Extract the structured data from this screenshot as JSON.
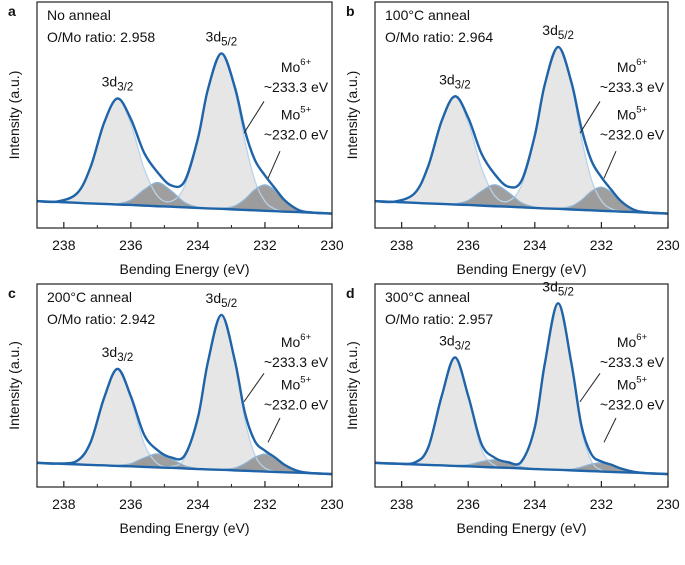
{
  "chart_data": [
    {
      "type": "area",
      "panel": "a",
      "condition": "No anneal",
      "ratio": "O/Mo ratio: 2.958",
      "xlabel": "Bending Energy (eV)",
      "ylabel": "Intensity (a.u.)",
      "xlim": [
        238.8,
        230
      ],
      "xticks": [
        238,
        236,
        234,
        232,
        230
      ],
      "xminorticks": [
        237,
        235,
        233,
        231
      ],
      "ylim": [
        0,
        1.05
      ],
      "peak_labels": [
        {
          "text": "3d",
          "sub": "3/2"
        },
        {
          "text": "3d",
          "sub": "5/2"
        }
      ],
      "species": [
        {
          "text": "Mo",
          "sup": "6+",
          "energy": "~233.3 eV"
        },
        {
          "text": "Mo",
          "sup": "5+",
          "energy": "~232.0 eV"
        }
      ],
      "x": [
        238.8,
        238.2,
        237.6,
        237.2,
        236.8,
        236.4,
        236.0,
        235.6,
        235.2,
        234.8,
        234.4,
        234.0,
        233.7,
        233.3,
        232.9,
        232.6,
        232.3,
        232.0,
        231.7,
        231.4,
        231.0,
        230.6,
        230.0
      ],
      "series": [
        {
          "color": "#b9d3ea",
          "fill": "#e2e2e2",
          "values": [
            0.125,
            0.123,
            0.162,
            0.284,
            0.488,
            0.599,
            0.483,
            0.274,
            0.148,
            0.124,
            0.194,
            0.413,
            0.644,
            0.809,
            0.639,
            0.404,
            0.22,
            0.124,
            0.088,
            0.078,
            0.074,
            0.071,
            0.067
          ]
        },
        {
          "color": "#8fb3d4",
          "fill": "#8e8e8e",
          "values": [
            0.125,
            0.121,
            0.117,
            0.114,
            0.112,
            0.112,
            0.13,
            0.178,
            0.211,
            0.173,
            0.119,
            0.096,
            0.092,
            0.091,
            0.102,
            0.133,
            0.178,
            0.2,
            0.174,
            0.125,
            0.084,
            0.072,
            0.067
          ]
        },
        {
          "color": "#1f64a8",
          "values": [
            0.125,
            0.121,
            0.117,
            0.114,
            0.112,
            0.109,
            0.107,
            0.104,
            0.101,
            0.099,
            0.096,
            0.093,
            0.091,
            0.089,
            0.086,
            0.084,
            0.082,
            0.08,
            0.078,
            0.076,
            0.074,
            0.071,
            0.067
          ]
        },
        {
          "color": "#1f64a8",
          "values": [
            0.125,
            0.123,
            0.162,
            0.284,
            0.488,
            0.602,
            0.506,
            0.348,
            0.258,
            0.198,
            0.216,
            0.416,
            0.645,
            0.811,
            0.655,
            0.453,
            0.316,
            0.244,
            0.184,
            0.127,
            0.084,
            0.072,
            0.067
          ]
        }
      ]
    },
    {
      "type": "area",
      "panel": "b",
      "condition": "100°C anneal",
      "ratio": "O/Mo ratio: 2.964",
      "xlabel": "Bending Energy (eV)",
      "ylabel": "Intensity (a.u.)",
      "xlim": [
        238.8,
        230
      ],
      "xticks": [
        238,
        236,
        234,
        232,
        230
      ],
      "xminorticks": [
        237,
        235,
        233,
        231
      ],
      "ylim": [
        0,
        1.05
      ],
      "peak_labels": [
        {
          "text": "3d",
          "sub": "3/2"
        },
        {
          "text": "3d",
          "sub": "5/2"
        }
      ],
      "species": [
        {
          "text": "Mo",
          "sup": "6+",
          "energy": "~233.3 eV"
        },
        {
          "text": "Mo",
          "sup": "5+",
          "energy": "~232.0 eV"
        }
      ],
      "x": [
        238.8,
        238.2,
        237.6,
        237.2,
        236.8,
        236.4,
        236.0,
        235.6,
        235.2,
        234.8,
        234.4,
        234.0,
        233.7,
        233.3,
        232.9,
        232.6,
        232.3,
        232.0,
        231.7,
        231.4,
        231.0,
        230.6,
        230.0
      ],
      "series": [
        {
          "color": "#b9d3ea",
          "fill": "#e2e2e2",
          "values": [
            0.125,
            0.123,
            0.163,
            0.288,
            0.496,
            0.609,
            0.491,
            0.278,
            0.149,
            0.125,
            0.198,
            0.427,
            0.667,
            0.839,
            0.662,
            0.418,
            0.225,
            0.126,
            0.089,
            0.078,
            0.074,
            0.071,
            0.067
          ]
        },
        {
          "color": "#8fb3d4",
          "fill": "#8e8e8e",
          "values": [
            0.125,
            0.121,
            0.117,
            0.114,
            0.112,
            0.112,
            0.128,
            0.171,
            0.201,
            0.166,
            0.117,
            0.096,
            0.092,
            0.091,
            0.101,
            0.129,
            0.17,
            0.19,
            0.166,
            0.121,
            0.083,
            0.072,
            0.067
          ]
        },
        {
          "color": "#1f64a8",
          "values": [
            0.125,
            0.121,
            0.117,
            0.114,
            0.112,
            0.109,
            0.107,
            0.104,
            0.101,
            0.099,
            0.096,
            0.093,
            0.091,
            0.089,
            0.086,
            0.084,
            0.082,
            0.08,
            0.078,
            0.076,
            0.074,
            0.071,
            0.067
          ]
        },
        {
          "color": "#1f64a8",
          "values": [
            0.125,
            0.123,
            0.163,
            0.288,
            0.496,
            0.612,
            0.512,
            0.345,
            0.249,
            0.192,
            0.219,
            0.43,
            0.667,
            0.841,
            0.677,
            0.463,
            0.313,
            0.236,
            0.177,
            0.123,
            0.083,
            0.072,
            0.067
          ]
        }
      ]
    },
    {
      "type": "area",
      "panel": "c",
      "condition": "200°C anneal",
      "ratio": "O/Mo ratio: 2.942",
      "xlabel": "Bending Energy (eV)",
      "ylabel": "Intensity (a.u.)",
      "xlim": [
        238.8,
        230
      ],
      "xticks": [
        238,
        236,
        234,
        232,
        230
      ],
      "xminorticks": [
        237,
        235,
        233,
        231
      ],
      "ylim": [
        0,
        1.05
      ],
      "peak_labels": [
        {
          "text": "3d",
          "sub": "3/2"
        },
        {
          "text": "3d",
          "sub": "5/2"
        }
      ],
      "species": [
        {
          "text": "Mo",
          "sup": "6+",
          "energy": "~233.3 eV"
        },
        {
          "text": "Mo",
          "sup": "5+",
          "energy": "~232.0 eV"
        }
      ],
      "x": [
        238.8,
        238.2,
        237.6,
        237.2,
        236.8,
        236.4,
        236.0,
        235.6,
        235.2,
        234.8,
        234.4,
        234.0,
        233.7,
        233.3,
        232.9,
        232.6,
        232.3,
        232.0,
        231.7,
        231.4,
        231.0,
        230.6,
        230.0
      ],
      "series": [
        {
          "color": "#b9d3ea",
          "fill": "#e2e2e2",
          "values": [
            0.125,
            0.121,
            0.136,
            0.232,
            0.46,
            0.609,
            0.455,
            0.222,
            0.12,
            0.106,
            0.148,
            0.357,
            0.648,
            0.889,
            0.643,
            0.348,
            0.165,
            0.098,
            0.081,
            0.076,
            0.074,
            0.071,
            0.067
          ]
        },
        {
          "color": "#8fb3d4",
          "fill": "#8e8e8e",
          "values": [
            0.125,
            0.121,
            0.117,
            0.114,
            0.112,
            0.111,
            0.121,
            0.151,
            0.171,
            0.146,
            0.11,
            0.095,
            0.091,
            0.09,
            0.098,
            0.121,
            0.154,
            0.17,
            0.15,
            0.113,
            0.082,
            0.072,
            0.067
          ]
        },
        {
          "color": "#1f64a8",
          "values": [
            0.125,
            0.121,
            0.117,
            0.114,
            0.112,
            0.109,
            0.107,
            0.104,
            0.101,
            0.099,
            0.096,
            0.093,
            0.091,
            0.089,
            0.086,
            0.084,
            0.082,
            0.08,
            0.078,
            0.076,
            0.074,
            0.071,
            0.067
          ]
        },
        {
          "color": "#1f64a8",
          "values": [
            0.125,
            0.121,
            0.136,
            0.232,
            0.46,
            0.611,
            0.469,
            0.269,
            0.19,
            0.153,
            0.162,
            0.359,
            0.648,
            0.89,
            0.655,
            0.385,
            0.237,
            0.188,
            0.153,
            0.113,
            0.082,
            0.072,
            0.067
          ]
        }
      ]
    },
    {
      "type": "area",
      "panel": "d",
      "condition": "300°C anneal",
      "ratio": "O/Mo ratio: 2.957",
      "xlabel": "Bending Energy (eV)",
      "ylabel": "Intensity (a.u.)",
      "xlim": [
        238.8,
        230
      ],
      "xticks": [
        238,
        236,
        234,
        232,
        230
      ],
      "xminorticks": [
        237,
        235,
        233,
        231
      ],
      "ylim": [
        0,
        1.05
      ],
      "peak_labels": [
        {
          "text": "3d",
          "sub": "3/2"
        },
        {
          "text": "3d",
          "sub": "5/2"
        }
      ],
      "species": [
        {
          "text": "Mo",
          "sup": "6+",
          "energy": "~233.3 eV"
        },
        {
          "text": "Mo",
          "sup": "5+",
          "energy": "~232.0 eV"
        }
      ],
      "x": [
        238.8,
        238.2,
        237.6,
        237.2,
        236.8,
        236.4,
        236.0,
        235.6,
        235.2,
        234.8,
        234.4,
        234.0,
        233.7,
        233.3,
        232.9,
        232.6,
        232.3,
        232.0,
        231.7,
        231.4,
        231.0,
        230.6,
        230.0
      ],
      "series": [
        {
          "color": "#b9d3ea",
          "fill": "#e2e2e2",
          "values": [
            0.125,
            0.121,
            0.127,
            0.205,
            0.468,
            0.669,
            0.463,
            0.195,
            0.111,
            0.101,
            0.124,
            0.308,
            0.638,
            0.949,
            0.633,
            0.299,
            0.133,
            0.087,
            0.079,
            0.076,
            0.074,
            0.071,
            0.067
          ]
        },
        {
          "color": "#8fb3d4",
          "fill": "#8e8e8e",
          "values": [
            0.125,
            0.121,
            0.117,
            0.114,
            0.112,
            0.11,
            0.115,
            0.131,
            0.141,
            0.126,
            0.104,
            0.094,
            0.091,
            0.09,
            0.092,
            0.103,
            0.118,
            0.125,
            0.114,
            0.095,
            0.078,
            0.071,
            0.067
          ]
        },
        {
          "color": "#1f64a8",
          "values": [
            0.125,
            0.121,
            0.117,
            0.114,
            0.112,
            0.109,
            0.107,
            0.104,
            0.101,
            0.099,
            0.096,
            0.093,
            0.091,
            0.089,
            0.086,
            0.084,
            0.082,
            0.08,
            0.078,
            0.076,
            0.074,
            0.071,
            0.067
          ]
        },
        {
          "color": "#1f64a8",
          "values": [
            0.125,
            0.121,
            0.127,
            0.205,
            0.468,
            0.67,
            0.471,
            0.222,
            0.151,
            0.128,
            0.132,
            0.309,
            0.638,
            0.95,
            0.639,
            0.317,
            0.169,
            0.132,
            0.115,
            0.095,
            0.078,
            0.071,
            0.067
          ]
        }
      ]
    }
  ]
}
